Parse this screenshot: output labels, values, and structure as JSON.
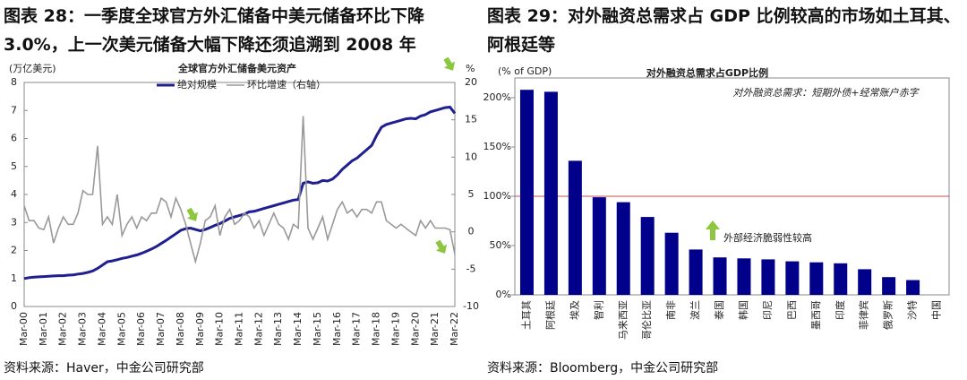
{
  "chart_data": [
    {
      "type": "line",
      "figure_title": "图表 28：一季度全球官方外汇储备中美元储备环比下降3.0%，上一次美元储备大幅下降还须追溯到 2008 年",
      "title": "全球官方外汇储备美元资产",
      "y_label": "(万亿美元)",
      "y2_label": "%",
      "source": "资料来源：Haver，中金公司研究部",
      "categories": [
        "Mar-00",
        null,
        null,
        null,
        "Mar-01",
        null,
        null,
        null,
        "Mar-02",
        null,
        null,
        null,
        "Mar-03",
        null,
        null,
        null,
        "Mar-04",
        null,
        null,
        null,
        "Mar-05",
        null,
        null,
        null,
        "Mar-06",
        null,
        null,
        null,
        "Mar-07",
        null,
        null,
        null,
        "Mar-08",
        null,
        null,
        null,
        "Mar-09",
        null,
        null,
        null,
        "Mar-10",
        null,
        null,
        null,
        "Mar-11",
        null,
        null,
        null,
        "Mar-12",
        null,
        null,
        null,
        "Mar-13",
        null,
        null,
        null,
        "Mar-14",
        null,
        null,
        null,
        "Mar-15",
        null,
        null,
        null,
        "Mar-16",
        null,
        null,
        null,
        "Mar-17",
        null,
        null,
        null,
        "Mar-18",
        null,
        null,
        null,
        "Mar-19",
        null,
        null,
        null,
        "Mar-20",
        null,
        null,
        null,
        "Mar-21",
        null,
        null,
        null,
        "Mar-22"
      ],
      "series": [
        {
          "name": "绝对规模",
          "color": "#1f1f8f",
          "values": [
            1.0,
            1.03,
            1.05,
            1.06,
            1.07,
            1.08,
            1.09,
            1.1,
            1.1,
            1.12,
            1.13,
            1.16,
            1.18,
            1.22,
            1.27,
            1.36,
            1.48,
            1.6,
            1.63,
            1.67,
            1.72,
            1.75,
            1.8,
            1.84,
            1.9,
            1.97,
            2.05,
            2.14,
            2.25,
            2.36,
            2.48,
            2.6,
            2.72,
            2.78,
            2.8,
            2.75,
            2.7,
            2.75,
            2.82,
            2.9,
            2.96,
            3.05,
            3.15,
            3.2,
            3.25,
            3.3,
            3.38,
            3.4,
            3.45,
            3.5,
            3.55,
            3.6,
            3.65,
            3.7,
            3.75,
            3.8,
            3.82,
            4.4,
            4.45,
            4.4,
            4.42,
            4.5,
            4.48,
            4.55,
            4.7,
            4.9,
            5.05,
            5.2,
            5.3,
            5.45,
            5.6,
            5.75,
            6.1,
            6.4,
            6.5,
            6.55,
            6.6,
            6.65,
            6.7,
            6.72,
            6.7,
            6.8,
            6.85,
            6.95,
            7.0,
            7.05,
            7.1,
            7.12,
            6.9
          ]
        },
        {
          "name": "环比增速（右轴）",
          "color": "#999999",
          "axis": "y2",
          "values": [
            3.5,
            1.5,
            1.5,
            0.5,
            0.3,
            2.0,
            -1.5,
            0.5,
            2.0,
            1.0,
            1.0,
            2.5,
            5.5,
            5.0,
            5.0,
            11.5,
            1.0,
            2.0,
            1.0,
            5.0,
            -0.5,
            1.0,
            2.0,
            0.5,
            2.0,
            1.5,
            2.5,
            2.5,
            4.5,
            4.0,
            2.0,
            4.5,
            3.0,
            1.0,
            -1.5,
            -4.0,
            -1.5,
            1.5,
            2.0,
            3.5,
            -0.5,
            2.0,
            3.0,
            1.0,
            1.5,
            2.5,
            2.0,
            0.5,
            1.5,
            -0.5,
            1.0,
            2.5,
            1.0,
            0.5,
            -1.0,
            1.0,
            0.5,
            15.5,
            0.5,
            -1.0,
            0.5,
            2.0,
            -1.0,
            1.0,
            3.0,
            4.0,
            2.5,
            3.0,
            2.0,
            3.0,
            3.0,
            2.5,
            4.0,
            4.0,
            1.5,
            1.0,
            0.5,
            1.0,
            0.5,
            0.0,
            -0.5,
            1.5,
            0.5,
            1.5,
            0.5,
            0.5,
            0.5,
            0.3,
            -3.0
          ]
        }
      ],
      "ylim": [
        0,
        8
      ],
      "yticks": [
        0,
        1,
        2,
        3,
        4,
        5,
        6,
        7,
        8
      ],
      "y2lim": [
        -10,
        20
      ],
      "y2ticks": [
        -10,
        -5,
        0,
        5,
        10,
        15,
        20
      ]
    },
    {
      "type": "bar",
      "figure_title": "图表 29：对外融资总需求占 GDP 比例较高的市场如土耳其、阿根廷等",
      "title": "对外融资总需求占GDP比例",
      "y_label": "(% of GDP)",
      "note": "对外融资总需求：短期外债+经常账户赤字",
      "annotation": "外部经济脆弱性较高",
      "source": "资料来源：Bloomberg，中金公司研究部",
      "categories": [
        "土耳其",
        "阿根廷",
        "埃及",
        "智利",
        "马来西亚",
        "哥伦比亚",
        "南非",
        "波兰",
        "泰国",
        "韩国",
        "印尼",
        "巴西",
        "墨西哥",
        "印度",
        "菲律宾",
        "俄罗斯",
        "沙特",
        "中国"
      ],
      "values": [
        208,
        206,
        136,
        99,
        94,
        79,
        63,
        46,
        38,
        37,
        36,
        34,
        33,
        32,
        26,
        18,
        15,
        0
      ],
      "color": "#00008b",
      "ref_line": 100,
      "ref_color": "#c0504d",
      "ylim": [
        0,
        220
      ],
      "yticks": [
        {
          "value": 0,
          "label": "0%"
        },
        {
          "value": 50,
          "label": "50%"
        },
        {
          "value": 100,
          "label": "100%"
        },
        {
          "value": 150,
          "label": "150%"
        },
        {
          "value": 200,
          "label": "200%"
        }
      ]
    }
  ]
}
